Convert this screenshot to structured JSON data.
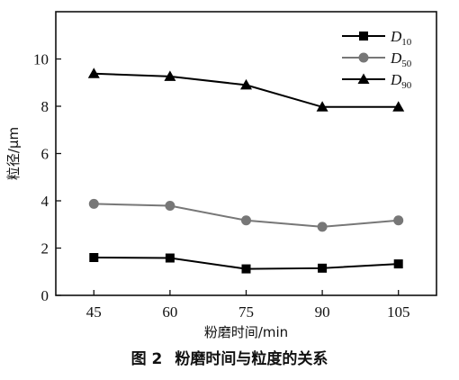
{
  "chart_data": {
    "type": "line",
    "x": [
      45,
      60,
      75,
      90,
      105
    ],
    "xlabel": "粉磨时间/min",
    "ylabel": "粒径/μm",
    "xlim": [
      37.5,
      112.5
    ],
    "ylim": [
      0,
      12
    ],
    "xticks": [
      "45",
      "60",
      "75",
      "90",
      "105"
    ],
    "yticks": [
      "0",
      "2",
      "4",
      "6",
      "8",
      "10"
    ],
    "grid": false,
    "legend_position": "top-right",
    "series": [
      {
        "name": "D",
        "sub": "10",
        "marker": "square",
        "color": "#000000",
        "values": [
          1.6,
          1.58,
          1.12,
          1.15,
          1.33
        ]
      },
      {
        "name": "D",
        "sub": "50",
        "marker": "circle",
        "color": "#777777",
        "values": [
          3.87,
          3.79,
          3.17,
          2.9,
          3.17
        ]
      },
      {
        "name": "D",
        "sub": "90",
        "marker": "triangle",
        "color": "#000000",
        "values": [
          9.38,
          9.26,
          8.9,
          7.97,
          7.97
        ]
      }
    ]
  },
  "caption": {
    "number": "图 2",
    "text": "粉磨时间与粒度的关系"
  }
}
